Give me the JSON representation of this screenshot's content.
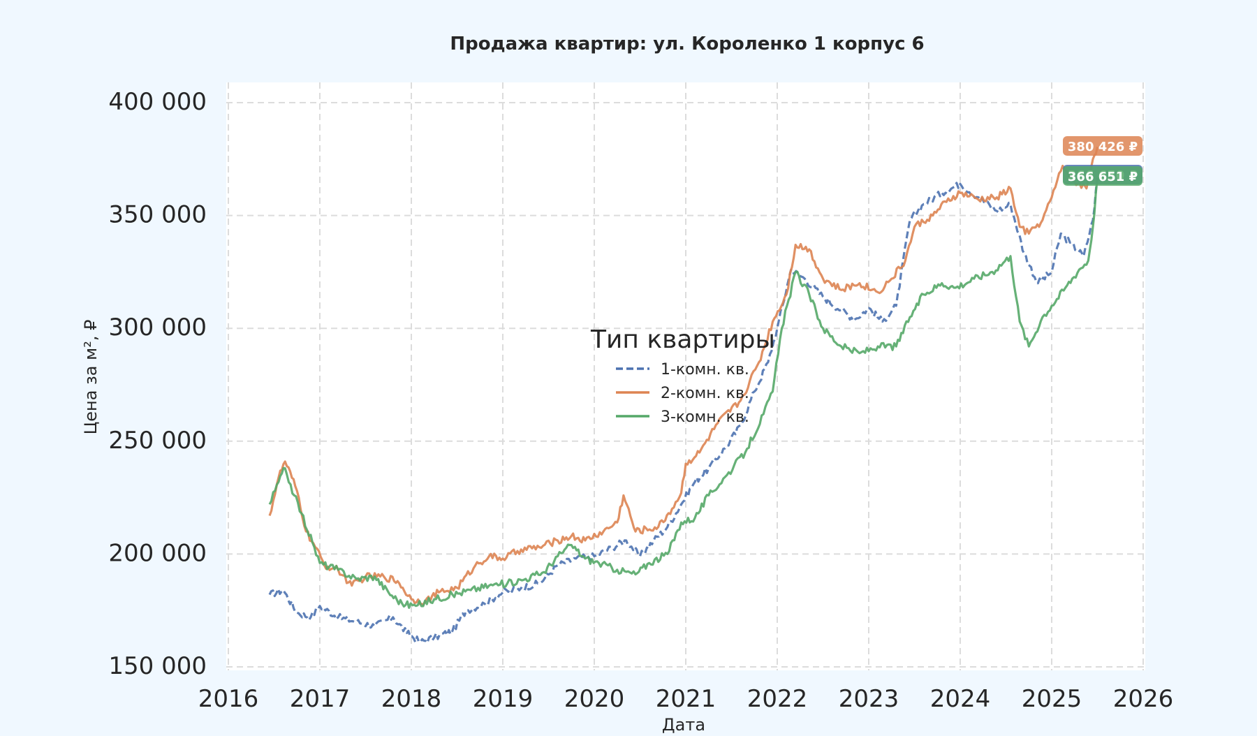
{
  "chart_data": {
    "type": "line",
    "title": "Продажа квартир: ул. Короленко 1 корпус 6",
    "xlabel": "Дата",
    "ylabel": "Цена за м², ₽",
    "xlim": [
      2016,
      2026
    ],
    "ylim": [
      150000,
      400000
    ],
    "x_ticks": [
      "2016",
      "2017",
      "2018",
      "2019",
      "2020",
      "2021",
      "2022",
      "2023",
      "2024",
      "2025",
      "2026"
    ],
    "y_ticks": [
      "150 000",
      "200 000",
      "250 000",
      "300 000",
      "350 000",
      "400 000"
    ],
    "grid": true,
    "legend": {
      "title": "Тип квартиры",
      "placement": "center"
    },
    "series": [
      {
        "name": "1-комн. кв.",
        "color": "#4c72b0",
        "dash": "dashed",
        "end_label": "366 650 ₽",
        "points": [
          [
            2016.45,
            182000
          ],
          [
            2016.6,
            184000
          ],
          [
            2016.75,
            174000
          ],
          [
            2016.9,
            172000
          ],
          [
            2017.0,
            177000
          ],
          [
            2017.2,
            172000
          ],
          [
            2017.4,
            170000
          ],
          [
            2017.6,
            168000
          ],
          [
            2017.8,
            172000
          ],
          [
            2017.95,
            165000
          ],
          [
            2018.1,
            161000
          ],
          [
            2018.25,
            163000
          ],
          [
            2018.45,
            166000
          ],
          [
            2018.6,
            175000
          ],
          [
            2018.8,
            178000
          ],
          [
            2019.0,
            183000
          ],
          [
            2019.2,
            185000
          ],
          [
            2019.4,
            187000
          ],
          [
            2019.6,
            195000
          ],
          [
            2019.8,
            198000
          ],
          [
            2020.0,
            199000
          ],
          [
            2020.2,
            203000
          ],
          [
            2020.35,
            206000
          ],
          [
            2020.5,
            199000
          ],
          [
            2020.65,
            206000
          ],
          [
            2020.8,
            212000
          ],
          [
            2020.95,
            222000
          ],
          [
            2021.1,
            232000
          ],
          [
            2021.25,
            238000
          ],
          [
            2021.45,
            248000
          ],
          [
            2021.6,
            257000
          ],
          [
            2021.75,
            272000
          ],
          [
            2021.9,
            285000
          ],
          [
            2022.0,
            300000
          ],
          [
            2022.15,
            326000
          ],
          [
            2022.3,
            322000
          ],
          [
            2022.5,
            314000
          ],
          [
            2022.7,
            308000
          ],
          [
            2022.85,
            304000
          ],
          [
            2023.0,
            309000
          ],
          [
            2023.15,
            303000
          ],
          [
            2023.3,
            310000
          ],
          [
            2023.45,
            348000
          ],
          [
            2023.6,
            355000
          ],
          [
            2023.8,
            360000
          ],
          [
            2024.0,
            364000
          ],
          [
            2024.2,
            358000
          ],
          [
            2024.4,
            352000
          ],
          [
            2024.55,
            355000
          ],
          [
            2024.7,
            333000
          ],
          [
            2024.85,
            320000
          ],
          [
            2025.0,
            325000
          ],
          [
            2025.1,
            342000
          ],
          [
            2025.2,
            338000
          ],
          [
            2025.35,
            332000
          ],
          [
            2025.45,
            348000
          ],
          [
            2025.5,
            366650
          ]
        ]
      },
      {
        "name": "2-комн. кв.",
        "color": "#dd8452",
        "dash": "solid",
        "end_label": "380 426 ₽",
        "points": [
          [
            2016.45,
            217000
          ],
          [
            2016.55,
            234000
          ],
          [
            2016.62,
            241000
          ],
          [
            2016.75,
            228000
          ],
          [
            2016.85,
            210000
          ],
          [
            2016.95,
            203000
          ],
          [
            2017.05,
            195000
          ],
          [
            2017.2,
            193000
          ],
          [
            2017.35,
            186000
          ],
          [
            2017.5,
            190000
          ],
          [
            2017.7,
            190000
          ],
          [
            2017.85,
            188000
          ],
          [
            2018.0,
            180000
          ],
          [
            2018.15,
            179000
          ],
          [
            2018.3,
            183000
          ],
          [
            2018.5,
            185000
          ],
          [
            2018.7,
            195000
          ],
          [
            2018.85,
            199000
          ],
          [
            2019.0,
            198000
          ],
          [
            2019.2,
            202000
          ],
          [
            2019.4,
            203000
          ],
          [
            2019.6,
            206000
          ],
          [
            2019.75,
            208000
          ],
          [
            2019.9,
            206000
          ],
          [
            2020.1,
            210000
          ],
          [
            2020.25,
            214000
          ],
          [
            2020.32,
            226000
          ],
          [
            2020.45,
            210000
          ],
          [
            2020.7,
            212000
          ],
          [
            2020.85,
            220000
          ],
          [
            2020.95,
            227000
          ],
          [
            2021.0,
            240000
          ],
          [
            2021.15,
            245000
          ],
          [
            2021.35,
            258000
          ],
          [
            2021.6,
            268000
          ],
          [
            2021.8,
            285000
          ],
          [
            2021.95,
            303000
          ],
          [
            2022.1,
            315000
          ],
          [
            2022.2,
            337000
          ],
          [
            2022.35,
            335000
          ],
          [
            2022.5,
            322000
          ],
          [
            2022.7,
            317000
          ],
          [
            2022.9,
            320000
          ],
          [
            2023.1,
            316000
          ],
          [
            2023.25,
            322000
          ],
          [
            2023.4,
            330000
          ],
          [
            2023.5,
            345000
          ],
          [
            2023.7,
            350000
          ],
          [
            2023.85,
            356000
          ],
          [
            2024.0,
            360000
          ],
          [
            2024.2,
            357000
          ],
          [
            2024.4,
            358000
          ],
          [
            2024.55,
            362000
          ],
          [
            2024.65,
            345000
          ],
          [
            2024.75,
            342000
          ],
          [
            2024.9,
            348000
          ],
          [
            2025.0,
            358000
          ],
          [
            2025.12,
            372000
          ],
          [
            2025.25,
            365000
          ],
          [
            2025.38,
            362000
          ],
          [
            2025.45,
            375000
          ],
          [
            2025.5,
            380426
          ]
        ]
      },
      {
        "name": "3-комн. кв.",
        "color": "#55a868",
        "dash": "solid",
        "end_label": "366 651 ₽",
        "points": [
          [
            2016.45,
            222000
          ],
          [
            2016.55,
            232000
          ],
          [
            2016.62,
            238000
          ],
          [
            2016.72,
            226000
          ],
          [
            2016.8,
            218000
          ],
          [
            2016.92,
            205000
          ],
          [
            2017.0,
            196000
          ],
          [
            2017.2,
            193000
          ],
          [
            2017.4,
            189000
          ],
          [
            2017.6,
            190000
          ],
          [
            2017.75,
            183000
          ],
          [
            2017.9,
            178000
          ],
          [
            2018.05,
            177000
          ],
          [
            2018.25,
            180000
          ],
          [
            2018.45,
            182000
          ],
          [
            2018.65,
            184000
          ],
          [
            2018.85,
            186000
          ],
          [
            2019.05,
            187000
          ],
          [
            2019.25,
            189000
          ],
          [
            2019.45,
            192000
          ],
          [
            2019.6,
            199000
          ],
          [
            2019.75,
            204000
          ],
          [
            2019.9,
            198000
          ],
          [
            2020.05,
            196000
          ],
          [
            2020.25,
            193000
          ],
          [
            2020.45,
            191000
          ],
          [
            2020.6,
            196000
          ],
          [
            2020.8,
            200000
          ],
          [
            2020.95,
            214000
          ],
          [
            2021.1,
            216000
          ],
          [
            2021.25,
            226000
          ],
          [
            2021.45,
            235000
          ],
          [
            2021.65,
            245000
          ],
          [
            2021.85,
            262000
          ],
          [
            2021.95,
            272000
          ],
          [
            2022.05,
            300000
          ],
          [
            2022.2,
            325000
          ],
          [
            2022.35,
            315000
          ],
          [
            2022.5,
            300000
          ],
          [
            2022.7,
            292000
          ],
          [
            2022.9,
            289000
          ],
          [
            2023.1,
            292000
          ],
          [
            2023.3,
            292000
          ],
          [
            2023.45,
            305000
          ],
          [
            2023.6,
            315000
          ],
          [
            2023.8,
            320000
          ],
          [
            2023.95,
            318000
          ],
          [
            2024.15,
            322000
          ],
          [
            2024.35,
            325000
          ],
          [
            2024.55,
            332000
          ],
          [
            2024.65,
            303000
          ],
          [
            2024.75,
            292000
          ],
          [
            2024.9,
            305000
          ],
          [
            2025.0,
            310000
          ],
          [
            2025.15,
            318000
          ],
          [
            2025.3,
            326000
          ],
          [
            2025.4,
            330000
          ],
          [
            2025.45,
            345000
          ],
          [
            2025.5,
            366651
          ]
        ]
      }
    ]
  }
}
